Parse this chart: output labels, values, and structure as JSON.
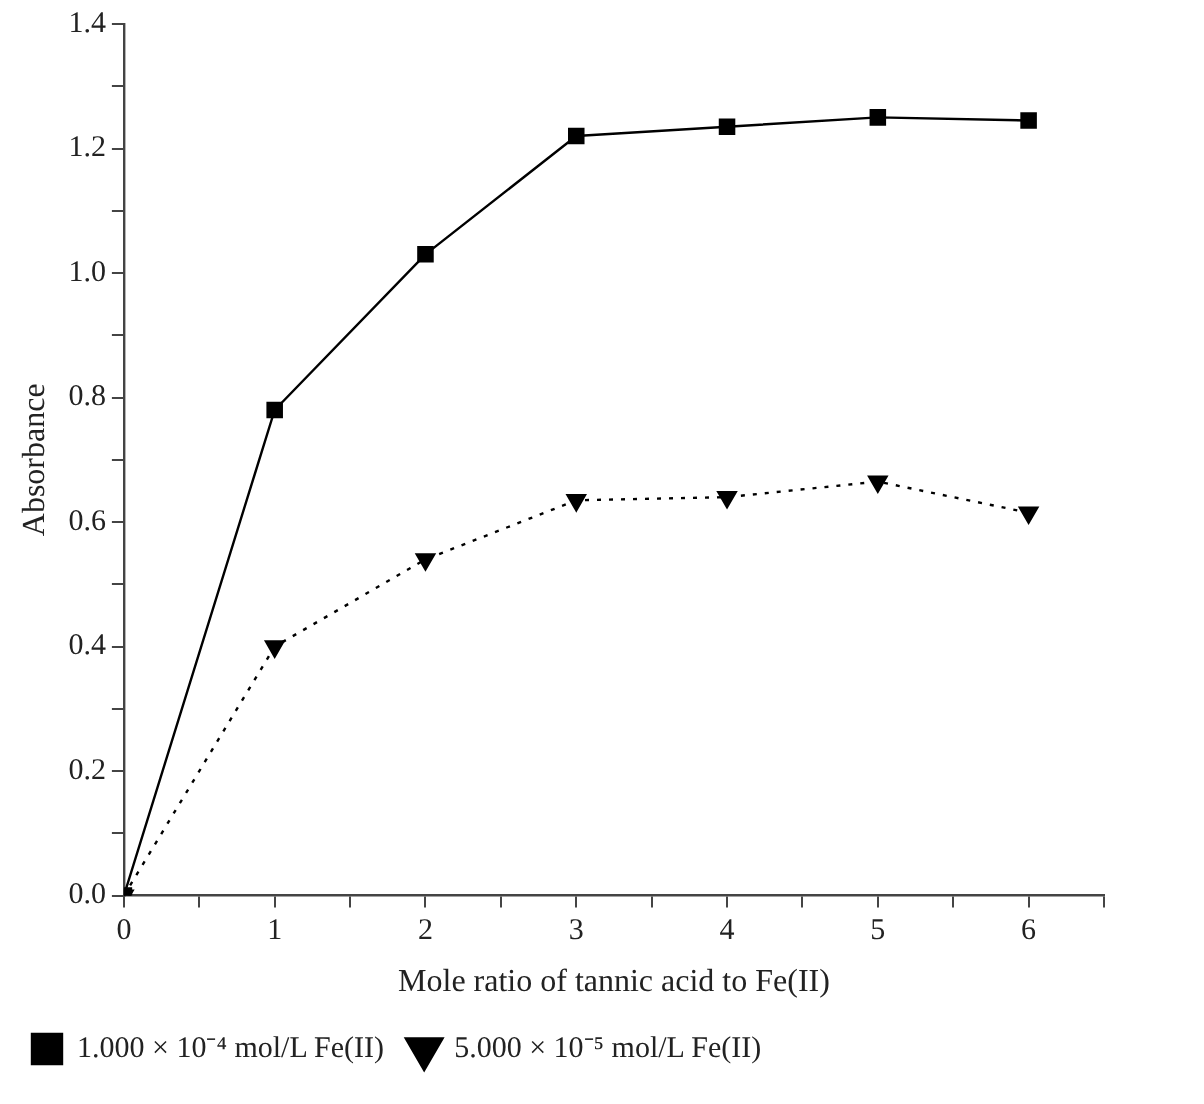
{
  "chart_data": {
    "type": "line",
    "xlabel": "Mole ratio of tannic acid to Fe(II)",
    "ylabel": "Absorbance",
    "x": [
      0,
      1,
      2,
      3,
      4,
      5,
      6
    ],
    "series": [
      {
        "name": "1.000 × 10⁻⁴ mol/L Fe(II)",
        "color": "#000000",
        "values": [
          0,
          0.78,
          1.03,
          1.22,
          1.235,
          1.25,
          1.245
        ],
        "marker": "square",
        "line_style": "solid"
      },
      {
        "name": "5.000 × 10⁻⁵ mol/L Fe(II)",
        "color": "#000000",
        "values": [
          0,
          0.4,
          0.54,
          0.635,
          0.64,
          0.665,
          0.615
        ],
        "marker": "triangle",
        "line_style": "dotted"
      }
    ],
    "xlim": [
      0,
      6.5
    ],
    "xticks": [
      0,
      {
        "value": 0.5,
        "label": null
      },
      1,
      {
        "value": 1.5,
        "label": null
      },
      2,
      {
        "value": 2.5,
        "label": null
      },
      3,
      {
        "value": 3.5,
        "label": null
      },
      4,
      {
        "value": 4.5,
        "label": null
      },
      5,
      {
        "value": 5.5,
        "label": null
      },
      6,
      {
        "value": 6.5,
        "label": null
      }
    ],
    "ylim": [
      0,
      1.4
    ],
    "yticks": [
      {
        "value": 0,
        "label": "0.0"
      },
      {
        "value": 0.1,
        "label": null
      },
      {
        "value": 0.2,
        "label": "0.2"
      },
      {
        "value": 0.3,
        "label": null
      },
      {
        "value": 0.4,
        "label": "0.4"
      },
      {
        "value": 0.5,
        "label": null
      },
      {
        "value": 0.6,
        "label": "0.6"
      },
      {
        "value": 0.7,
        "label": null
      },
      {
        "value": 0.8,
        "label": "0.8"
      },
      {
        "value": 0.9,
        "label": null
      },
      {
        "value": 1.0,
        "label": "1.0"
      },
      {
        "value": 1.1,
        "label": null
      },
      {
        "value": 1.2,
        "label": "1.2"
      },
      {
        "value": 1.3,
        "label": null
      },
      {
        "value": 1.4,
        "label": "1.4"
      }
    ],
    "grid": false,
    "legend": "bottom"
  }
}
